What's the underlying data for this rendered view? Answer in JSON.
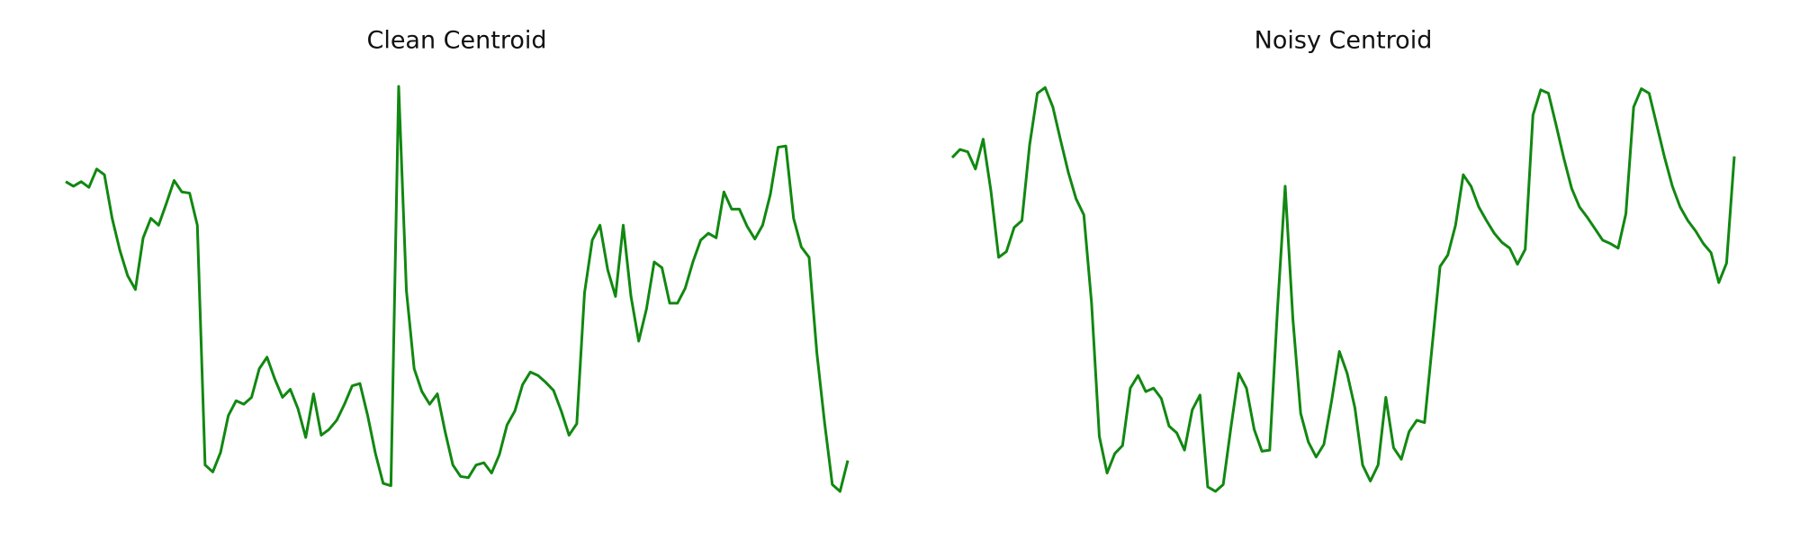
{
  "chart_data": [
    {
      "type": "line",
      "title": "Clean Centroid",
      "color": "#118811",
      "ylim": [
        0,
        353
      ],
      "values": [
        270,
        266,
        270,
        265,
        281,
        276,
        238,
        210,
        188,
        176,
        221,
        238,
        232,
        251,
        271,
        261,
        260,
        232,
        23,
        17,
        34,
        66,
        79,
        76,
        82,
        107,
        117,
        98,
        82,
        89,
        72,
        47,
        85,
        49,
        54,
        62,
        76,
        92,
        94,
        66,
        33,
        7,
        5,
        353,
        175,
        107,
        87,
        76,
        85,
        52,
        23,
        13,
        12,
        23,
        25,
        16,
        32,
        58,
        70,
        93,
        104,
        101,
        95,
        88,
        70,
        49,
        59,
        173,
        219,
        232,
        193,
        170,
        232,
        170,
        131,
        159,
        200,
        195,
        164,
        164,
        177,
        200,
        219,
        225,
        221,
        261,
        246,
        246,
        231,
        220,
        232,
        259,
        300,
        301,
        238,
        213,
        204,
        121,
        60,
        6,
        0,
        27
      ]
    },
    {
      "type": "line",
      "title": "Noisy Centroid",
      "color": "#118811",
      "ylim": [
        0,
        353
      ],
      "values": [
        291,
        298,
        296,
        281,
        307,
        262,
        204,
        209,
        230,
        236,
        302,
        347,
        352,
        335,
        306,
        278,
        255,
        241,
        164,
        48,
        16,
        33,
        40,
        90,
        101,
        87,
        90,
        81,
        57,
        51,
        36,
        71,
        84,
        4,
        0,
        6,
        56,
        103,
        90,
        54,
        35,
        36,
        158,
        266,
        150,
        68,
        43,
        30,
        41,
        79,
        122,
        103,
        73,
        23,
        9,
        23,
        82,
        38,
        28,
        52,
        62,
        60,
        128,
        196,
        206,
        232,
        276,
        266,
        248,
        236,
        225,
        217,
        212,
        198,
        211,
        328,
        350,
        347,
        319,
        290,
        264,
        248,
        239,
        229,
        219,
        216,
        212,
        242,
        335,
        351,
        347,
        319,
        291,
        266,
        248,
        236,
        227,
        216,
        208,
        182,
        199,
        292
      ]
    }
  ]
}
